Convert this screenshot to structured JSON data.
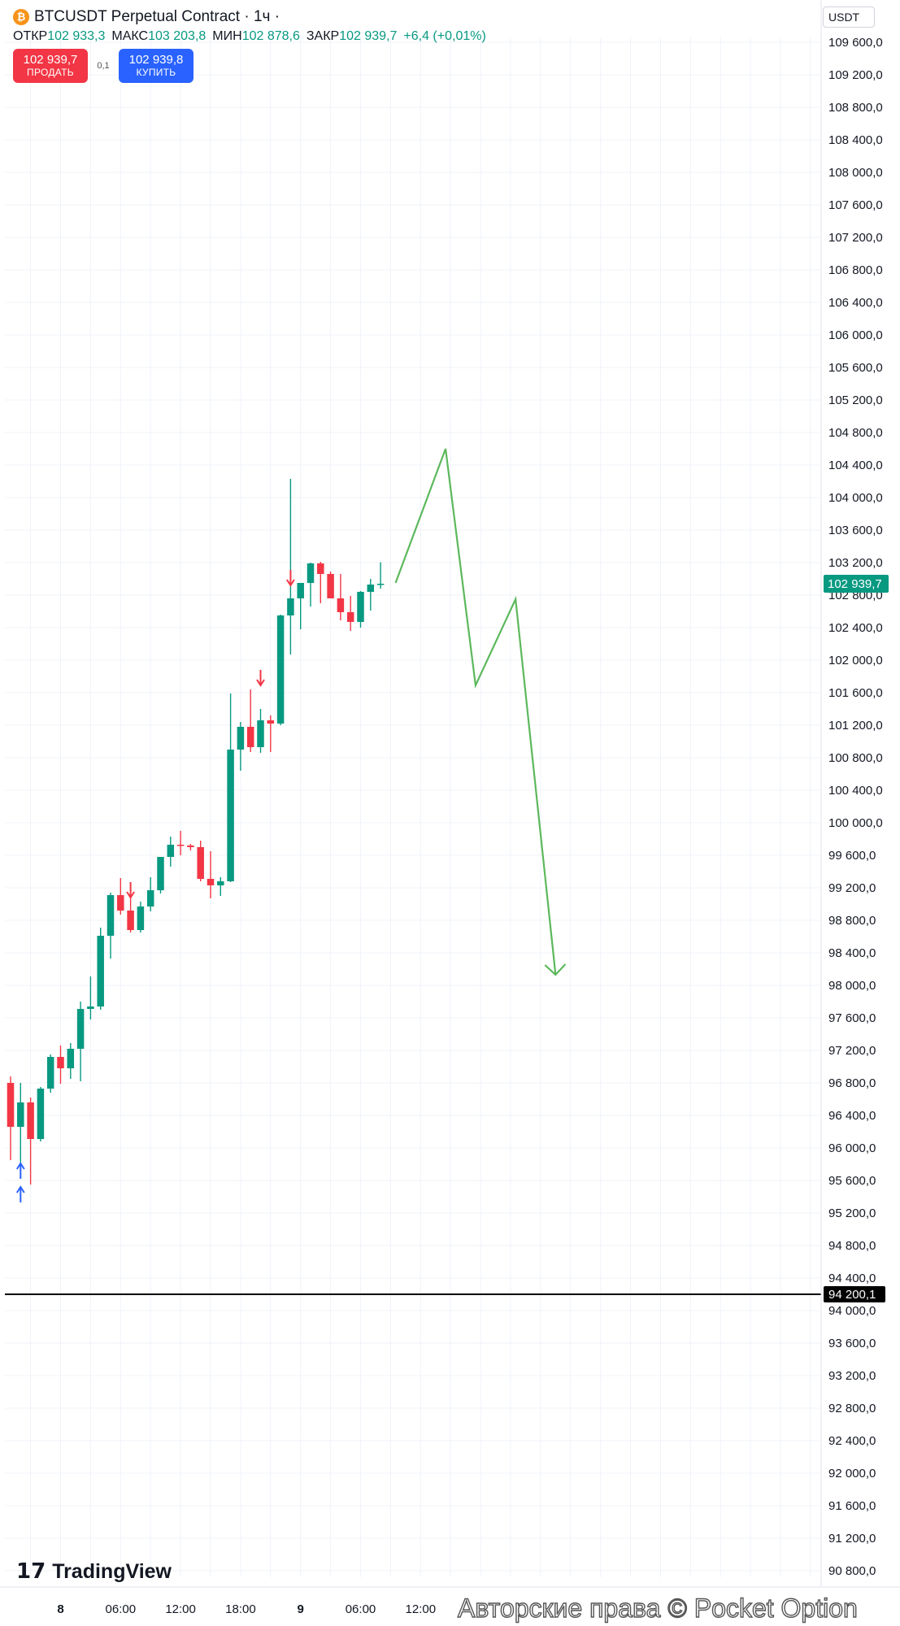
{
  "header": {
    "symbol_title": "BTCUSDT Perpetual Contract · 1ч ·",
    "ohlc": [
      {
        "label": "ОТКР",
        "value": "102 933,3"
      },
      {
        "label": "МАКС",
        "value": "103 203,8"
      },
      {
        "label": "МИН",
        "value": "102 878,6"
      },
      {
        "label": "ЗАКР",
        "value": "102 939,7"
      }
    ],
    "change": "+6,4 (+0,01%)",
    "sell": {
      "price": "102 939,7",
      "action": "ПРОДАТЬ"
    },
    "spread": "0,1",
    "buy": {
      "price": "102 939,8",
      "action": "КУПИТЬ"
    }
  },
  "currency": "USDT",
  "branding": {
    "logo_text": "TradingView",
    "logo_mark": "17"
  },
  "watermark": "Авторские права © Pocket Option",
  "colors": {
    "up": "#089981",
    "down": "#f23645",
    "projection": "#5cb85c",
    "hline": "#000000",
    "buy": "#2962ff",
    "signal_up": "#2962ff"
  },
  "chart_data": {
    "type": "candlestick",
    "price_axis": {
      "min": 90800,
      "max": 109600,
      "step": 400,
      "ticks": [
        "109 600,0",
        "109 200,0",
        "108 800,0",
        "108 400,0",
        "108 000,0",
        "107 600,0",
        "107 200,0",
        "106 800,0",
        "106 400,0",
        "106 000,0",
        "105 600,0",
        "105 200,0",
        "104 800,0",
        "104 400,0",
        "104 000,0",
        "103 600,0",
        "103 200,0",
        "102 800,0",
        "102 400,0",
        "102 000,0",
        "101 600,0",
        "101 200,0",
        "100 800,0",
        "100 400,0",
        "100 000,0",
        "99 600,0",
        "99 200,0",
        "98 800,0",
        "98 400,0",
        "98 000,0",
        "97 600,0",
        "97 200,0",
        "96 800,0",
        "96 400,0",
        "96 000,0",
        "95 600,0",
        "95 200,0",
        "94 800,0",
        "94 400,0",
        "94 000,0",
        "93 600,0",
        "93 200,0",
        "92 800,0",
        "92 400,0",
        "92 000,0",
        "91 600,0",
        "91 200,0",
        "90 800,0"
      ]
    },
    "time_axis": [
      {
        "label": "8",
        "bar": 5,
        "bold": true
      },
      {
        "label": "06:00",
        "bar": 11
      },
      {
        "label": "12:00",
        "bar": 17
      },
      {
        "label": "18:00",
        "bar": 23
      },
      {
        "label": "9",
        "bar": 29,
        "bold": true
      },
      {
        "label": "06:00",
        "bar": 35
      },
      {
        "label": "12:00",
        "bar": 41
      }
    ],
    "current_price": {
      "value": 102939.7,
      "label": "102 939,7"
    },
    "horizontal_line": {
      "value": 94200.1,
      "label": "94 200,1"
    },
    "candles": [
      {
        "o": 96800,
        "h": 96880,
        "l": 95850,
        "c": 96260
      },
      {
        "o": 96260,
        "h": 96800,
        "l": 95780,
        "c": 96560
      },
      {
        "o": 96560,
        "h": 96620,
        "l": 95550,
        "c": 96110
      },
      {
        "o": 96110,
        "h": 96750,
        "l": 96080,
        "c": 96730
      },
      {
        "o": 96730,
        "h": 97150,
        "l": 96680,
        "c": 97120
      },
      {
        "o": 97120,
        "h": 97260,
        "l": 96790,
        "c": 96980
      },
      {
        "o": 96980,
        "h": 97290,
        "l": 96850,
        "c": 97220
      },
      {
        "o": 97220,
        "h": 97800,
        "l": 96820,
        "c": 97710
      },
      {
        "o": 97710,
        "h": 98110,
        "l": 97580,
        "c": 97740
      },
      {
        "o": 97740,
        "h": 98710,
        "l": 97700,
        "c": 98610
      },
      {
        "o": 98610,
        "h": 99140,
        "l": 98330,
        "c": 99110
      },
      {
        "o": 99110,
        "h": 99320,
        "l": 98870,
        "c": 98920
      },
      {
        "o": 98920,
        "h": 99120,
        "l": 98650,
        "c": 98680
      },
      {
        "o": 98680,
        "h": 99030,
        "l": 98650,
        "c": 98970
      },
      {
        "o": 98970,
        "h": 99330,
        "l": 98910,
        "c": 99170
      },
      {
        "o": 99170,
        "h": 99580,
        "l": 99130,
        "c": 99580
      },
      {
        "o": 99580,
        "h": 99830,
        "l": 99460,
        "c": 99730
      },
      {
        "o": 99730,
        "h": 99900,
        "l": 99600,
        "c": 99720
      },
      {
        "o": 99720,
        "h": 99740,
        "l": 99660,
        "c": 99700
      },
      {
        "o": 99700,
        "h": 99780,
        "l": 99280,
        "c": 99310
      },
      {
        "o": 99310,
        "h": 99650,
        "l": 99070,
        "c": 99230
      },
      {
        "o": 99230,
        "h": 99330,
        "l": 99100,
        "c": 99280
      },
      {
        "o": 99280,
        "h": 101590,
        "l": 99270,
        "c": 100900
      },
      {
        "o": 100900,
        "h": 101240,
        "l": 100640,
        "c": 101180
      },
      {
        "o": 101180,
        "h": 101640,
        "l": 100870,
        "c": 100930
      },
      {
        "o": 100930,
        "h": 101400,
        "l": 100860,
        "c": 101260
      },
      {
        "o": 101260,
        "h": 101320,
        "l": 100870,
        "c": 101220
      },
      {
        "o": 101220,
        "h": 102560,
        "l": 101200,
        "c": 102550
      },
      {
        "o": 102550,
        "h": 104230,
        "l": 102070,
        "c": 102760
      },
      {
        "o": 102760,
        "h": 102950,
        "l": 102380,
        "c": 102950
      },
      {
        "o": 102950,
        "h": 103200,
        "l": 102660,
        "c": 103190
      },
      {
        "o": 103190,
        "h": 103210,
        "l": 102700,
        "c": 103060
      },
      {
        "o": 103060,
        "h": 103090,
        "l": 102760,
        "c": 102760
      },
      {
        "o": 102760,
        "h": 103060,
        "l": 102490,
        "c": 102590
      },
      {
        "o": 102590,
        "h": 102790,
        "l": 102360,
        "c": 102470
      },
      {
        "o": 102470,
        "h": 102850,
        "l": 102400,
        "c": 102840
      },
      {
        "o": 102840,
        "h": 103000,
        "l": 102610,
        "c": 102930
      },
      {
        "o": 102933.3,
        "h": 103203.8,
        "l": 102878.6,
        "c": 102939.7
      }
    ],
    "signals": [
      {
        "bar": 1,
        "direction": "up",
        "price": 95710
      },
      {
        "bar": 1,
        "direction": "up",
        "price": 95420
      },
      {
        "bar": 12,
        "direction": "down",
        "price": 99180
      },
      {
        "bar": 25,
        "direction": "down",
        "price": 101790
      },
      {
        "bar": 28,
        "direction": "down",
        "price": 103020
      }
    ],
    "projection_path": [
      {
        "bar": 38.5,
        "price": 102950
      },
      {
        "bar": 43.5,
        "price": 104600
      },
      {
        "bar": 46.5,
        "price": 101690
      },
      {
        "bar": 50.5,
        "price": 102750
      },
      {
        "bar": 54.5,
        "price": 98130
      }
    ]
  }
}
